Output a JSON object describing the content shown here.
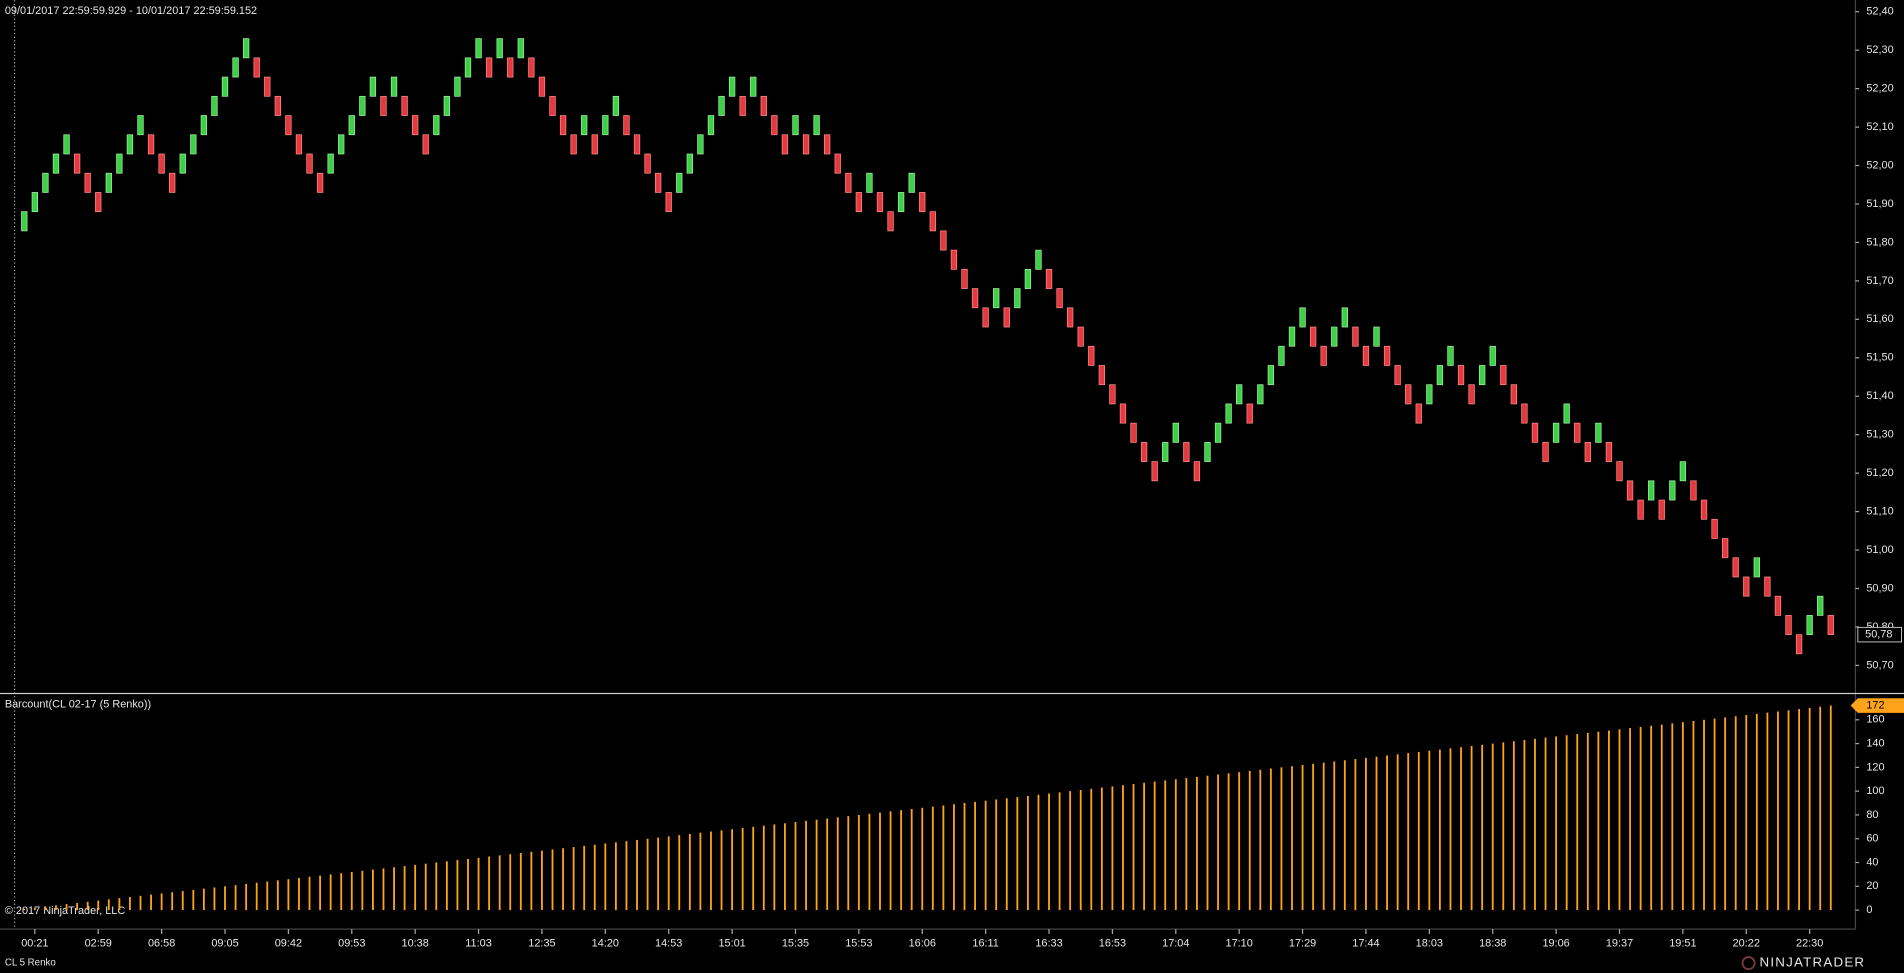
{
  "chart_data": [
    {
      "type": "candlestick",
      "title": "09/01/2017 22:59:59.929 - 10/01/2017 22:59:59.152",
      "up_color": "#3ecf46",
      "down_color": "#e23a3e",
      "open": [
        51.83,
        51.88,
        51.93,
        51.98,
        52.03,
        52.03,
        51.98,
        51.93,
        51.93,
        51.98,
        52.03,
        52.08,
        52.08,
        52.03,
        51.98,
        51.98,
        52.03,
        52.08,
        52.13,
        52.18,
        52.23,
        52.28,
        52.28,
        52.23,
        52.18,
        52.13,
        52.08,
        52.03,
        51.98,
        51.98,
        52.03,
        52.08,
        52.13,
        52.18,
        52.18,
        52.18,
        52.18,
        52.13,
        52.08,
        52.08,
        52.13,
        52.18,
        52.23,
        52.28,
        52.28,
        52.28,
        52.28,
        52.28,
        52.28,
        52.23,
        52.18,
        52.13,
        52.08,
        52.08,
        52.08,
        52.08,
        52.13,
        52.13,
        52.08,
        52.03,
        51.98,
        51.93,
        51.93,
        51.98,
        52.03,
        52.08,
        52.13,
        52.18,
        52.18,
        52.18,
        52.18,
        52.13,
        52.08,
        52.08,
        52.08,
        52.08,
        52.08,
        52.03,
        51.98,
        51.93,
        51.93,
        51.93,
        51.88,
        51.88,
        51.93,
        51.93,
        51.88,
        51.83,
        51.78,
        51.73,
        51.68,
        51.63,
        51.63,
        51.63,
        51.63,
        51.68,
        51.73,
        51.73,
        51.68,
        51.63,
        51.58,
        51.53,
        51.48,
        51.43,
        51.38,
        51.33,
        51.28,
        51.23,
        51.23,
        51.28,
        51.28,
        51.23,
        51.23,
        51.28,
        51.33,
        51.38,
        51.38,
        51.38,
        51.43,
        51.48,
        51.53,
        51.58,
        51.58,
        51.53,
        51.53,
        51.58,
        51.58,
        51.53,
        51.53,
        51.53,
        51.48,
        51.43,
        51.38,
        51.38,
        51.43,
        51.48,
        51.48,
        51.43,
        51.43,
        51.48,
        51.48,
        51.43,
        51.38,
        51.33,
        51.28,
        51.28,
        51.33,
        51.33,
        51.28,
        51.28,
        51.28,
        51.23,
        51.18,
        51.13,
        51.13,
        51.13,
        51.13,
        51.18,
        51.18,
        51.13,
        51.08,
        51.03,
        50.98,
        50.93,
        50.93,
        50.93,
        50.88,
        50.83,
        50.78,
        50.78,
        50.83,
        50.83
      ],
      "close": [
        51.88,
        51.93,
        51.98,
        52.03,
        52.08,
        51.98,
        51.93,
        51.88,
        51.98,
        52.03,
        52.08,
        52.13,
        52.03,
        51.98,
        51.93,
        52.03,
        52.08,
        52.13,
        52.18,
        52.23,
        52.28,
        52.33,
        52.23,
        52.18,
        52.13,
        52.08,
        52.03,
        51.98,
        51.93,
        52.03,
        52.08,
        52.13,
        52.18,
        52.23,
        52.13,
        52.23,
        52.13,
        52.08,
        52.03,
        52.13,
        52.18,
        52.23,
        52.28,
        52.33,
        52.23,
        52.33,
        52.23,
        52.33,
        52.23,
        52.18,
        52.13,
        52.08,
        52.03,
        52.13,
        52.03,
        52.13,
        52.18,
        52.08,
        52.03,
        51.98,
        51.93,
        51.88,
        51.98,
        52.03,
        52.08,
        52.13,
        52.18,
        52.23,
        52.13,
        52.23,
        52.13,
        52.08,
        52.03,
        52.13,
        52.03,
        52.13,
        52.03,
        51.98,
        51.93,
        51.88,
        51.98,
        51.88,
        51.83,
        51.93,
        51.98,
        51.88,
        51.83,
        51.78,
        51.73,
        51.68,
        51.63,
        51.58,
        51.68,
        51.58,
        51.68,
        51.73,
        51.78,
        51.68,
        51.63,
        51.58,
        51.53,
        51.48,
        51.43,
        51.38,
        51.33,
        51.28,
        51.23,
        51.18,
        51.28,
        51.33,
        51.23,
        51.18,
        51.28,
        51.33,
        51.38,
        51.43,
        51.33,
        51.43,
        51.48,
        51.53,
        51.58,
        51.63,
        51.53,
        51.48,
        51.58,
        51.63,
        51.53,
        51.48,
        51.58,
        51.48,
        51.43,
        51.38,
        51.33,
        51.43,
        51.48,
        51.53,
        51.43,
        51.38,
        51.48,
        51.53,
        51.43,
        51.38,
        51.33,
        51.28,
        51.23,
        51.33,
        51.38,
        51.28,
        51.23,
        51.33,
        51.23,
        51.18,
        51.13,
        51.08,
        51.18,
        51.08,
        51.18,
        51.23,
        51.13,
        51.08,
        51.03,
        50.98,
        50.93,
        50.88,
        50.98,
        50.88,
        50.83,
        50.78,
        50.73,
        50.83,
        50.88,
        50.78
      ],
      "last_label": "50,78",
      "ylim": [
        50.63,
        52.43
      ],
      "yticks": [
        {
          "value": 50.7,
          "label": "50,70"
        },
        {
          "value": 50.8,
          "label": "50,80"
        },
        {
          "value": 50.9,
          "label": "50,90"
        },
        {
          "value": 51.0,
          "label": "51,00"
        },
        {
          "value": 51.1,
          "label": "51,10"
        },
        {
          "value": 51.2,
          "label": "51,20"
        },
        {
          "value": 51.3,
          "label": "51,30"
        },
        {
          "value": 51.4,
          "label": "51,40"
        },
        {
          "value": 51.5,
          "label": "51,50"
        },
        {
          "value": 51.6,
          "label": "51,60"
        },
        {
          "value": 51.7,
          "label": "51,70"
        },
        {
          "value": 51.8,
          "label": "51,80"
        },
        {
          "value": 51.9,
          "label": "51,90"
        },
        {
          "value": 52.0,
          "label": "52,00"
        },
        {
          "value": 52.1,
          "label": "52,10"
        },
        {
          "value": 52.2,
          "label": "52,20"
        },
        {
          "value": 52.3,
          "label": "52,30"
        },
        {
          "value": 52.4,
          "label": "52,40"
        }
      ]
    },
    {
      "type": "bar",
      "title": "Barcount(CL 02-17 (5 Renko))",
      "color": "#ffa31a",
      "categories": [
        null,
        "00:21",
        null,
        null,
        null,
        null,
        null,
        "02:59",
        null,
        null,
        null,
        null,
        null,
        "06:58",
        null,
        null,
        null,
        null,
        null,
        "09:05",
        null,
        null,
        null,
        null,
        null,
        "09:42",
        null,
        null,
        null,
        null,
        null,
        "09:53",
        null,
        null,
        null,
        null,
        null,
        "10:38",
        null,
        null,
        null,
        null,
        null,
        "11:03",
        null,
        null,
        null,
        null,
        null,
        "12:35",
        null,
        null,
        null,
        null,
        null,
        "14:20",
        null,
        null,
        null,
        null,
        null,
        "14:53",
        null,
        null,
        null,
        null,
        null,
        "15:01",
        null,
        null,
        null,
        null,
        null,
        "15:35",
        null,
        null,
        null,
        null,
        null,
        "15:53",
        null,
        null,
        null,
        null,
        null,
        "16:06",
        null,
        null,
        null,
        null,
        null,
        "16:11",
        null,
        null,
        null,
        null,
        null,
        "16:33",
        null,
        null,
        null,
        null,
        null,
        "16:53",
        null,
        null,
        null,
        null,
        null,
        "17:04",
        null,
        null,
        null,
        null,
        null,
        "17:10",
        null,
        null,
        null,
        null,
        null,
        "17:29",
        null,
        null,
        null,
        null,
        null,
        "17:44",
        null,
        null,
        null,
        null,
        null,
        "18:03",
        null,
        null,
        null,
        null,
        null,
        "18:38",
        null,
        null,
        null,
        null,
        null,
        "19:06",
        null,
        null,
        null,
        null,
        null,
        "19:37",
        null,
        null,
        null,
        null,
        null,
        "19:51",
        null,
        null,
        null,
        null,
        null,
        "20:22",
        null,
        null,
        null,
        null,
        null,
        "22:30",
        null,
        null
      ],
      "values": [
        1,
        2,
        3,
        4,
        5,
        6,
        7,
        8,
        9,
        10,
        11,
        12,
        13,
        14,
        15,
        16,
        17,
        18,
        19,
        20,
        21,
        22,
        23,
        24,
        25,
        26,
        27,
        28,
        29,
        30,
        31,
        32,
        33,
        34,
        35,
        36,
        37,
        38,
        39,
        40,
        41,
        42,
        43,
        44,
        45,
        46,
        47,
        48,
        49,
        50,
        51,
        52,
        53,
        54,
        55,
        56,
        57,
        58,
        59,
        60,
        61,
        62,
        63,
        64,
        65,
        66,
        67,
        68,
        69,
        70,
        71,
        72,
        73,
        74,
        75,
        76,
        77,
        78,
        79,
        80,
        81,
        82,
        83,
        84,
        85,
        86,
        87,
        88,
        89,
        90,
        91,
        92,
        93,
        94,
        95,
        96,
        97,
        98,
        99,
        100,
        101,
        102,
        103,
        104,
        105,
        106,
        107,
        108,
        109,
        110,
        111,
        112,
        113,
        114,
        115,
        116,
        117,
        118,
        119,
        120,
        121,
        122,
        123,
        124,
        125,
        126,
        127,
        128,
        129,
        130,
        131,
        132,
        133,
        134,
        135,
        136,
        137,
        138,
        139,
        140,
        141,
        142,
        143,
        144,
        145,
        146,
        147,
        148,
        149,
        150,
        151,
        152,
        153,
        154,
        155,
        156,
        157,
        158,
        159,
        160,
        161,
        162,
        163,
        164,
        165,
        166,
        167,
        168,
        169,
        170,
        171,
        172
      ],
      "ylim": [
        -16,
        178
      ],
      "yticks": [
        0,
        20,
        40,
        60,
        80,
        100,
        120,
        140,
        160
      ]
    }
  ],
  "footer": {
    "copyright": "© 2017 NinjaTrader, LLC",
    "instrument": "CL 5 Renko",
    "logo": "NINJATRADER"
  }
}
